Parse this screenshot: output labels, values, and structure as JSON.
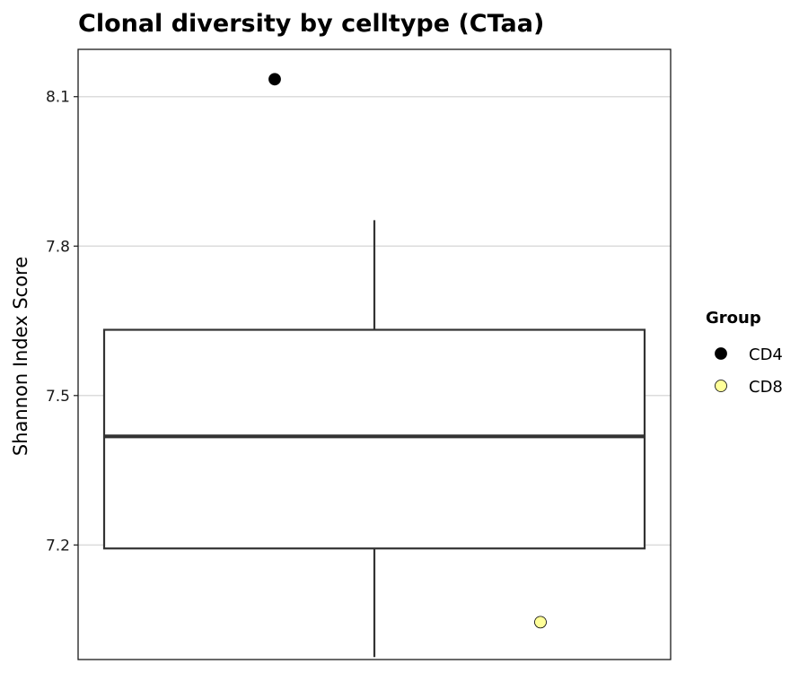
{
  "chart_data": {
    "type": "boxplot",
    "title": "Clonal diversity by celltype (CTaa)",
    "xlabel": "",
    "ylabel": "Shannon Index Score",
    "ylim": [
      6.97,
      8.195
    ],
    "yticks": [
      7.2,
      7.5,
      7.8,
      8.1
    ],
    "grid": {
      "horizontal_major": true,
      "vertical": false
    },
    "box": {
      "q1": 7.193,
      "median": 7.418,
      "q3": 7.632,
      "whisker_low": 6.975,
      "whisker_high": 7.852,
      "line_color": "#333333",
      "fill": "#ffffff"
    },
    "points": [
      {
        "group": "CD4",
        "y": 8.135,
        "color": "#000000"
      },
      {
        "group": "CD8",
        "y": 7.045,
        "color": "#FFFF99"
      }
    ],
    "legend": {
      "title": "Group",
      "position": "right",
      "entries": [
        {
          "label": "CD4",
          "color": "#000000"
        },
        {
          "label": "CD8",
          "color": "#FFFF99"
        }
      ]
    }
  }
}
